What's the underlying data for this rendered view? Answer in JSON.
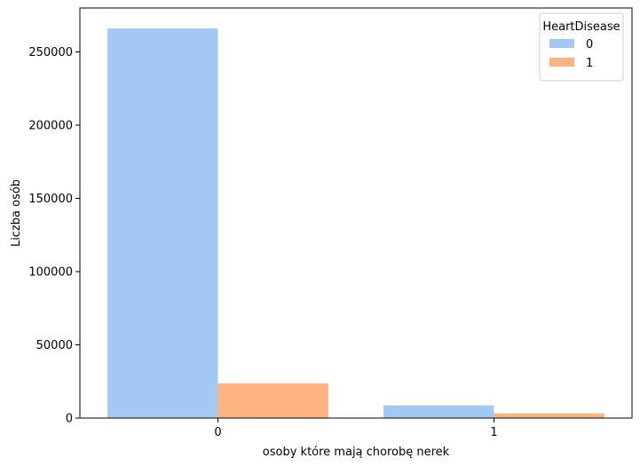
{
  "chart_data": {
    "type": "bar",
    "categories": [
      "0",
      "1"
    ],
    "series": [
      {
        "name": "0",
        "values": [
          266000,
          8700
        ],
        "color": "#a1c9f4"
      },
      {
        "name": "1",
        "values": [
          23700,
          3200
        ],
        "color": "#ffb482"
      }
    ],
    "title": "",
    "xlabel": "osoby które mają chorobę nerek",
    "ylabel": "Liczba osób",
    "ylim": [
      0,
      280000
    ],
    "yticks": [
      0,
      50000,
      100000,
      150000,
      200000,
      250000
    ],
    "ytick_labels": [
      "0",
      "50000",
      "100000",
      "150000",
      "200000",
      "250000"
    ],
    "legend": {
      "title": "HeartDisease",
      "placement": "top-right"
    },
    "grid": false
  }
}
